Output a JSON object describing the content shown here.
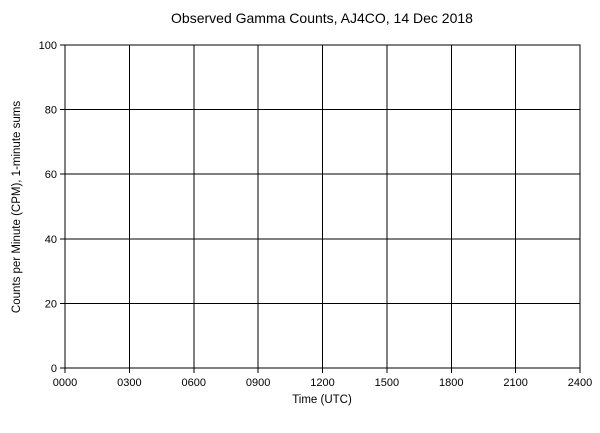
{
  "chart_data": {
    "type": "line",
    "title": "Observed Gamma Counts, AJ4CO, 14 Dec 2018",
    "xlabel": "Time (UTC)",
    "ylabel": "Counts per Minute (CPM), 1-minute sums",
    "xlim": [
      0,
      2400
    ],
    "ylim": [
      0,
      100
    ],
    "x_ticks": [
      0,
      300,
      600,
      900,
      1200,
      1500,
      1800,
      2100,
      2400
    ],
    "x_tick_labels": [
      "0000",
      "0300",
      "0600",
      "0900",
      "1200",
      "1500",
      "1800",
      "2100",
      "2400"
    ],
    "y_ticks": [
      0,
      20,
      40,
      60,
      80,
      100
    ],
    "y_tick_labels": [
      "0",
      "20",
      "40",
      "60",
      "80",
      "100"
    ],
    "grid": true,
    "legend": false,
    "series": []
  },
  "colors": {
    "background": "#ffffff",
    "grid": "#000000",
    "border": "#000000",
    "text": "#000000"
  },
  "layout_note": "empty plot, no data points visible"
}
